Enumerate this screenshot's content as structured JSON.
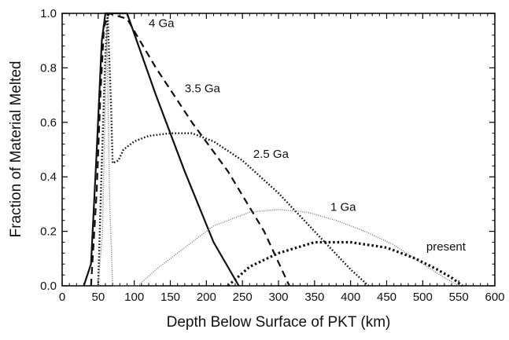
{
  "chart_data": {
    "type": "line",
    "title": "",
    "xlabel": "Depth Below Surface of PKT (km)",
    "ylabel": "Fraction of Material Melted",
    "xlim": [
      0,
      600
    ],
    "ylim": [
      0,
      1.0
    ],
    "xticks": [
      "0",
      "50",
      "100",
      "150",
      "200",
      "250",
      "300",
      "350",
      "400",
      "450",
      "500",
      "550",
      "600"
    ],
    "yticks": [
      "0.0",
      "0.2",
      "0.4",
      "0.6",
      "0.8",
      "1.0"
    ],
    "grid": false,
    "series": [
      {
        "name": "4 Ga",
        "style": "solid",
        "x": [
          30,
          40,
          48,
          55,
          60,
          90,
          130,
          170,
          210,
          245
        ],
        "y": [
          0.0,
          0.08,
          0.5,
          0.9,
          1.0,
          1.0,
          0.7,
          0.42,
          0.16,
          0.0
        ]
      },
      {
        "name": "3.5 Ga",
        "style": "dashed",
        "x": [
          40,
          48,
          53,
          58,
          65,
          90,
          130,
          180,
          230,
          280,
          315
        ],
        "y": [
          0.0,
          0.35,
          0.7,
          0.95,
          1.0,
          0.98,
          0.8,
          0.6,
          0.42,
          0.2,
          0.0
        ]
      },
      {
        "name": "2.5 Ga",
        "style": "dotted",
        "x": [
          50,
          55,
          60,
          63,
          68,
          70,
          78,
          85,
          100,
          120,
          150,
          180,
          210,
          250,
          300,
          350,
          400,
          425
        ],
        "y": [
          0.0,
          0.45,
          0.85,
          1.0,
          0.65,
          0.45,
          0.46,
          0.5,
          0.53,
          0.55,
          0.56,
          0.56,
          0.53,
          0.46,
          0.34,
          0.2,
          0.06,
          0.0
        ]
      },
      {
        "name": "1 Ga",
        "style": "fine-dotted",
        "x": [
          50,
          56,
          62,
          66,
          70,
          105,
          130,
          170,
          210,
          260,
          300,
          340,
          380,
          420,
          460,
          500,
          530,
          550
        ],
        "y": [
          0.0,
          0.2,
          0.95,
          0.3,
          0.0,
          0.0,
          0.06,
          0.14,
          0.22,
          0.27,
          0.28,
          0.27,
          0.24,
          0.2,
          0.15,
          0.08,
          0.03,
          0.0
        ]
      },
      {
        "name": "present",
        "style": "heavy-dotted",
        "x": [
          230,
          260,
          300,
          350,
          400,
          450,
          490,
          520,
          540,
          555
        ],
        "y": [
          0.0,
          0.07,
          0.12,
          0.16,
          0.16,
          0.14,
          0.1,
          0.06,
          0.03,
          0.0
        ]
      }
    ],
    "labels": [
      {
        "text": "4 Ga",
        "x": 120,
        "y": 0.95
      },
      {
        "text": "3.5 Ga",
        "x": 170,
        "y": 0.71
      },
      {
        "text": "2.5 Ga",
        "x": 265,
        "y": 0.47
      },
      {
        "text": "1 Ga",
        "x": 372,
        "y": 0.275
      },
      {
        "text": "present",
        "x": 505,
        "y": 0.13
      }
    ],
    "colors": {
      "line": "#111111",
      "light_line": "#777777",
      "frame": "#000000"
    }
  }
}
